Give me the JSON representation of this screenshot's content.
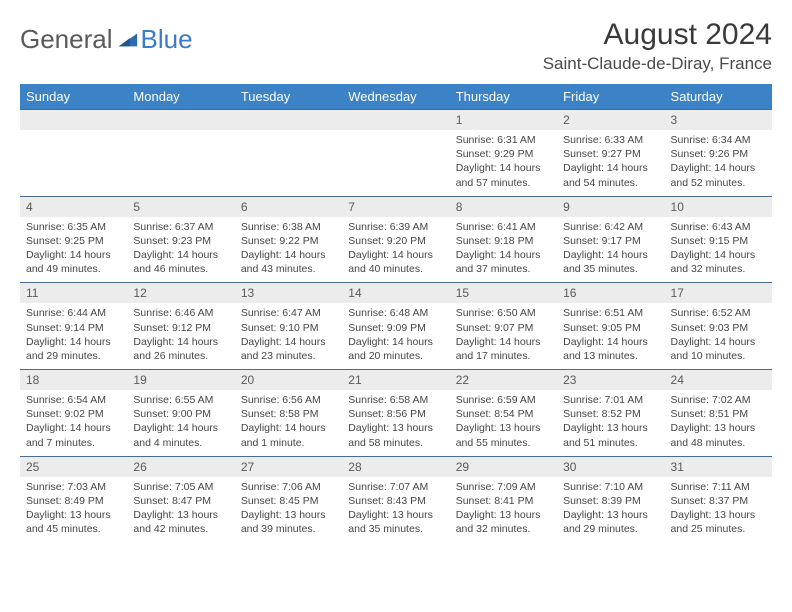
{
  "logo": {
    "general": "General",
    "blue": "Blue"
  },
  "title": "August 2024",
  "location": "Saint-Claude-de-Diray, France",
  "colors": {
    "header_bg": "#3b83c6",
    "header_text": "#ffffff",
    "daynum_bg": "#ececec",
    "row_border": "#4a6b8c",
    "logo_gray": "#5a5a5a",
    "logo_blue": "#3b7cc4"
  },
  "weekdays": [
    "Sunday",
    "Monday",
    "Tuesday",
    "Wednesday",
    "Thursday",
    "Friday",
    "Saturday"
  ],
  "weeks": [
    [
      null,
      null,
      null,
      null,
      {
        "n": "1",
        "sr": "6:31 AM",
        "ss": "9:29 PM",
        "dl": "14 hours and 57 minutes."
      },
      {
        "n": "2",
        "sr": "6:33 AM",
        "ss": "9:27 PM",
        "dl": "14 hours and 54 minutes."
      },
      {
        "n": "3",
        "sr": "6:34 AM",
        "ss": "9:26 PM",
        "dl": "14 hours and 52 minutes."
      }
    ],
    [
      {
        "n": "4",
        "sr": "6:35 AM",
        "ss": "9:25 PM",
        "dl": "14 hours and 49 minutes."
      },
      {
        "n": "5",
        "sr": "6:37 AM",
        "ss": "9:23 PM",
        "dl": "14 hours and 46 minutes."
      },
      {
        "n": "6",
        "sr": "6:38 AM",
        "ss": "9:22 PM",
        "dl": "14 hours and 43 minutes."
      },
      {
        "n": "7",
        "sr": "6:39 AM",
        "ss": "9:20 PM",
        "dl": "14 hours and 40 minutes."
      },
      {
        "n": "8",
        "sr": "6:41 AM",
        "ss": "9:18 PM",
        "dl": "14 hours and 37 minutes."
      },
      {
        "n": "9",
        "sr": "6:42 AM",
        "ss": "9:17 PM",
        "dl": "14 hours and 35 minutes."
      },
      {
        "n": "10",
        "sr": "6:43 AM",
        "ss": "9:15 PM",
        "dl": "14 hours and 32 minutes."
      }
    ],
    [
      {
        "n": "11",
        "sr": "6:44 AM",
        "ss": "9:14 PM",
        "dl": "14 hours and 29 minutes."
      },
      {
        "n": "12",
        "sr": "6:46 AM",
        "ss": "9:12 PM",
        "dl": "14 hours and 26 minutes."
      },
      {
        "n": "13",
        "sr": "6:47 AM",
        "ss": "9:10 PM",
        "dl": "14 hours and 23 minutes."
      },
      {
        "n": "14",
        "sr": "6:48 AM",
        "ss": "9:09 PM",
        "dl": "14 hours and 20 minutes."
      },
      {
        "n": "15",
        "sr": "6:50 AM",
        "ss": "9:07 PM",
        "dl": "14 hours and 17 minutes."
      },
      {
        "n": "16",
        "sr": "6:51 AM",
        "ss": "9:05 PM",
        "dl": "14 hours and 13 minutes."
      },
      {
        "n": "17",
        "sr": "6:52 AM",
        "ss": "9:03 PM",
        "dl": "14 hours and 10 minutes."
      }
    ],
    [
      {
        "n": "18",
        "sr": "6:54 AM",
        "ss": "9:02 PM",
        "dl": "14 hours and 7 minutes."
      },
      {
        "n": "19",
        "sr": "6:55 AM",
        "ss": "9:00 PM",
        "dl": "14 hours and 4 minutes."
      },
      {
        "n": "20",
        "sr": "6:56 AM",
        "ss": "8:58 PM",
        "dl": "14 hours and 1 minute."
      },
      {
        "n": "21",
        "sr": "6:58 AM",
        "ss": "8:56 PM",
        "dl": "13 hours and 58 minutes."
      },
      {
        "n": "22",
        "sr": "6:59 AM",
        "ss": "8:54 PM",
        "dl": "13 hours and 55 minutes."
      },
      {
        "n": "23",
        "sr": "7:01 AM",
        "ss": "8:52 PM",
        "dl": "13 hours and 51 minutes."
      },
      {
        "n": "24",
        "sr": "7:02 AM",
        "ss": "8:51 PM",
        "dl": "13 hours and 48 minutes."
      }
    ],
    [
      {
        "n": "25",
        "sr": "7:03 AM",
        "ss": "8:49 PM",
        "dl": "13 hours and 45 minutes."
      },
      {
        "n": "26",
        "sr": "7:05 AM",
        "ss": "8:47 PM",
        "dl": "13 hours and 42 minutes."
      },
      {
        "n": "27",
        "sr": "7:06 AM",
        "ss": "8:45 PM",
        "dl": "13 hours and 39 minutes."
      },
      {
        "n": "28",
        "sr": "7:07 AM",
        "ss": "8:43 PM",
        "dl": "13 hours and 35 minutes."
      },
      {
        "n": "29",
        "sr": "7:09 AM",
        "ss": "8:41 PM",
        "dl": "13 hours and 32 minutes."
      },
      {
        "n": "30",
        "sr": "7:10 AM",
        "ss": "8:39 PM",
        "dl": "13 hours and 29 minutes."
      },
      {
        "n": "31",
        "sr": "7:11 AM",
        "ss": "8:37 PM",
        "dl": "13 hours and 25 minutes."
      }
    ]
  ],
  "labels": {
    "sunrise": "Sunrise:",
    "sunset": "Sunset:",
    "daylight": "Daylight:"
  }
}
